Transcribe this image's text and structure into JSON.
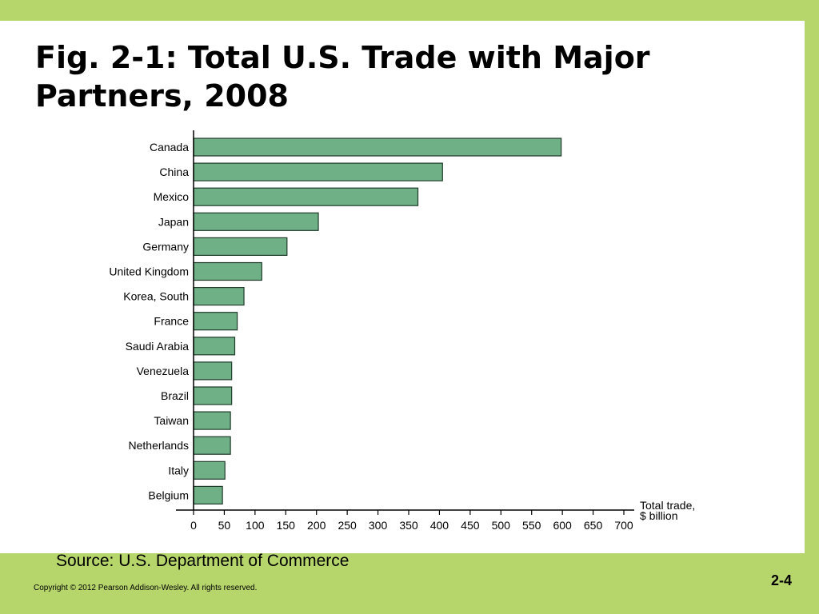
{
  "slide": {
    "title": "Fig. 2-1: Total U.S. Trade with Major Partners, 2008",
    "source": "Source: U.S. Department of Commerce",
    "copyright": "Copyright © 2012 Pearson Addison-Wesley. All rights reserved.",
    "page_number": "2-4"
  },
  "colors": {
    "background": "#b6d66c",
    "bar_fill": "#6fb087",
    "bar_stroke": "#1f3b2a"
  },
  "chart_data": {
    "type": "bar",
    "orientation": "horizontal",
    "categories": [
      "Canada",
      "China",
      "Mexico",
      "Japan",
      "Germany",
      "United Kingdom",
      "Korea, South",
      "France",
      "Saudi Arabia",
      "Venezuela",
      "Brazil",
      "Taiwan",
      "Netherlands",
      "Italy",
      "Belgium"
    ],
    "values": [
      598,
      405,
      365,
      203,
      152,
      111,
      82,
      71,
      67,
      62,
      62,
      60,
      60,
      51,
      47
    ],
    "xlabel_lines": [
      "Total trade,",
      "$ billion"
    ],
    "xlim": [
      0,
      700
    ],
    "xticks": [
      0,
      50,
      100,
      150,
      200,
      250,
      300,
      350,
      400,
      450,
      500,
      550,
      600,
      650,
      700
    ],
    "grid": false,
    "legend": "none"
  }
}
